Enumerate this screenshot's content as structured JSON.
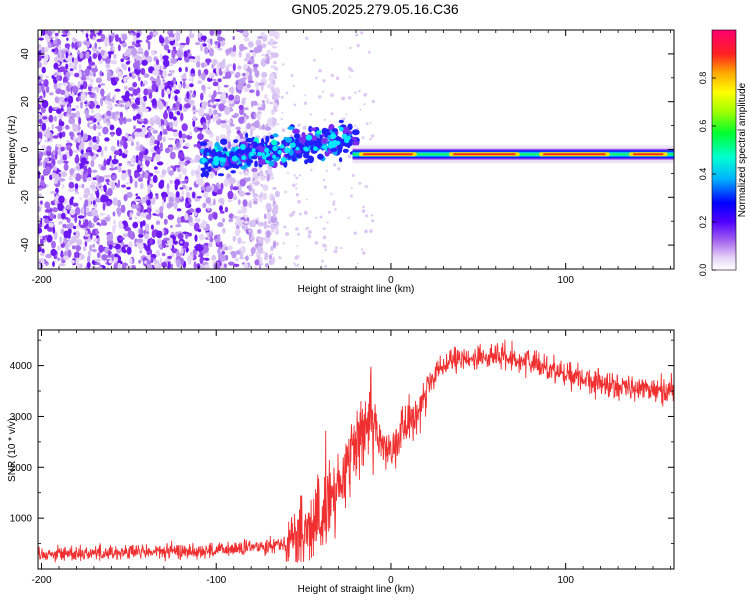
{
  "title": "GN05.2025.279.05.16.C36",
  "chart_data": [
    {
      "type": "heatmap",
      "title": "GN05.2025.279.05.16.C36",
      "xlabel": "Height of straight line (km)",
      "ylabel": "Frequency (Hz)",
      "xlim": [
        -202,
        162
      ],
      "ylim": [
        -50,
        50
      ],
      "xticks": [
        -200,
        -100,
        0,
        100
      ],
      "yticks": [
        -40,
        -20,
        0,
        20,
        40
      ],
      "colorbar": {
        "label": "Normalized spectral amplitude",
        "range": [
          0,
          1
        ],
        "ticks": [
          0.0,
          0.2,
          0.4,
          0.6,
          0.8
        ]
      },
      "features": [
        {
          "name": "noise",
          "x_range": [
            -202,
            -65
          ],
          "y_range": [
            -50,
            50
          ],
          "amplitude": [
            0.05,
            0.2
          ]
        },
        {
          "name": "onset",
          "x_range": [
            -108,
            -20
          ],
          "center_freq": [
            -5,
            5
          ],
          "amplitude": [
            0.3,
            0.6
          ]
        },
        {
          "name": "carrier",
          "x_range": [
            -22,
            162
          ],
          "center_freq": -2,
          "peak_amplitude": 1.0
        }
      ]
    },
    {
      "type": "line",
      "xlabel": "Height of straight line (km)",
      "ylabel": "SNR (10 * v/v)",
      "xlim": [
        -202,
        162
      ],
      "ylim": [
        0,
        4700
      ],
      "xticks": [
        -200,
        -100,
        0,
        100
      ],
      "yticks": [
        1000,
        2000,
        3000,
        4000
      ],
      "color": "#f03030",
      "profile": {
        "x": [
          -202,
          -150,
          -100,
          -80,
          -60,
          -50,
          -40,
          -30,
          -20,
          -12,
          -5,
          0,
          5,
          12,
          20,
          30,
          40,
          50,
          60,
          70,
          80,
          90,
          100,
          110,
          120,
          140,
          162
        ],
        "y": [
          300,
          330,
          360,
          420,
          520,
          650,
          1000,
          1600,
          2500,
          3000,
          2400,
          2400,
          2700,
          2900,
          3500,
          4000,
          4100,
          4150,
          4200,
          4150,
          4050,
          3950,
          3850,
          3750,
          3650,
          3550,
          3500
        ]
      }
    }
  ]
}
